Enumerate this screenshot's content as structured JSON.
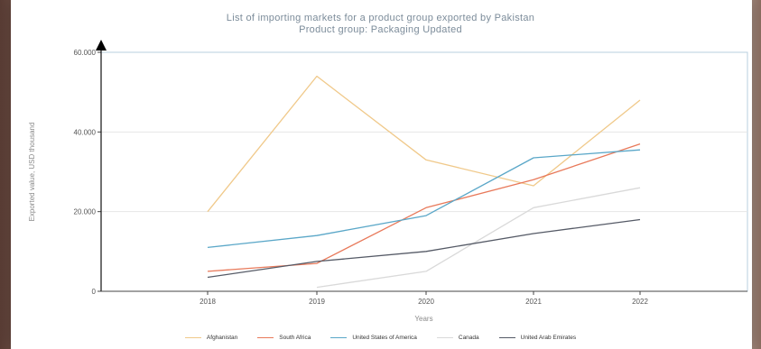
{
  "chart_data": {
    "type": "line",
    "title": "List of importing markets for a product group exported by Pakistan",
    "subtitle": "Product group: Packaging Updated",
    "xlabel": "Years",
    "ylabel": "Exported value, USD thousand",
    "categories": [
      "2018",
      "2019",
      "2020",
      "2021",
      "2022"
    ],
    "ylim": [
      0,
      60000
    ],
    "yticks": [
      0,
      20000,
      40000,
      60000
    ],
    "ytick_labels": [
      "0",
      "20.000",
      "40.000",
      "60.000"
    ],
    "grid": true,
    "legend_position": "bottom",
    "series": [
      {
        "name": "Afghanistan",
        "color": "#f0c98a",
        "values": [
          20000,
          54000,
          33000,
          26500,
          48000
        ]
      },
      {
        "name": "South Africa",
        "color": "#e8795a",
        "values": [
          5000,
          7000,
          21000,
          28000,
          37000
        ]
      },
      {
        "name": "United States of America",
        "color": "#5aa7c8",
        "values": [
          11000,
          14000,
          19000,
          33500,
          35500
        ]
      },
      {
        "name": "Canada",
        "color": "#d9d9d9",
        "values": [
          null,
          1000,
          5000,
          21000,
          26000
        ]
      },
      {
        "name": "United Arab Emirates",
        "color": "#555a66",
        "values": [
          3500,
          7500,
          10000,
          14500,
          18000
        ]
      }
    ]
  }
}
